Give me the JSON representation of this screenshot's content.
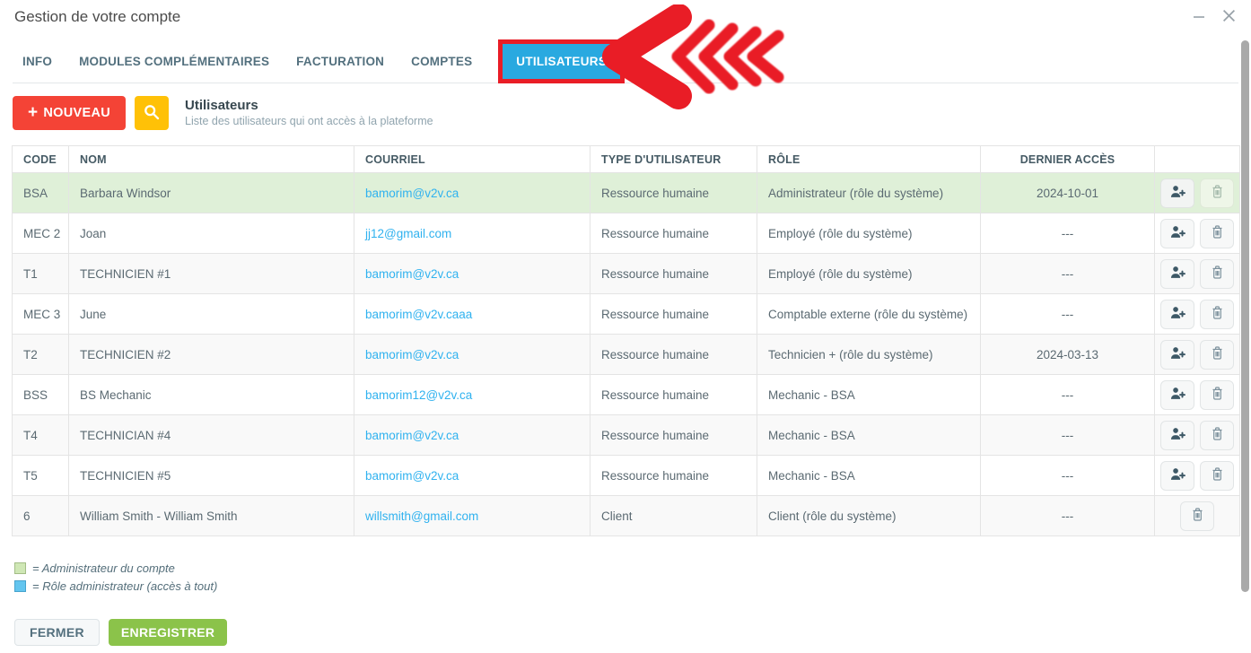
{
  "window": {
    "title": "Gestion de votre compte"
  },
  "tabs": [
    {
      "label": "INFO",
      "active": false
    },
    {
      "label": "MODULES COMPLÉMENTAIRES",
      "active": false
    },
    {
      "label": "FACTURATION",
      "active": false
    },
    {
      "label": "COMPTES",
      "active": false
    },
    {
      "label": "UTILISATEURS",
      "active": true
    }
  ],
  "annotation": {
    "description": "red multi-chevron arrow pointing left at UTILISATEURS tab",
    "color": "#e91d26"
  },
  "toolbar": {
    "new_button_plus": "+",
    "new_button_label": "NOUVEAU",
    "search_icon": "magnifier",
    "heading": "Utilisateurs",
    "subheading": "Liste des utilisateurs qui ont accès à la plateforme"
  },
  "table": {
    "columns": [
      "CODE",
      "NOM",
      "COURRIEL",
      "TYPE D'UTILISATEUR",
      "RÔLE",
      "DERNIER ACCÈS",
      ""
    ],
    "rows": [
      {
        "code": "BSA",
        "name": "Barbara Windsor",
        "email": "bamorim@v2v.ca",
        "type": "Ressource humaine",
        "role": "Administrateur (rôle du système)",
        "last_access": "2024-10-01",
        "highlighted": true,
        "actions": [
          "add-user",
          "delete"
        ]
      },
      {
        "code": "MEC 2",
        "name": "Joan",
        "email": "jj12@gmail.com",
        "type": "Ressource humaine",
        "role": "Employé (rôle du système)",
        "last_access": "---",
        "highlighted": false,
        "actions": [
          "add-user",
          "delete"
        ]
      },
      {
        "code": "T1",
        "name": "TECHNICIEN #1",
        "email": "bamorim@v2v.ca",
        "type": "Ressource humaine",
        "role": "Employé (rôle du système)",
        "last_access": "---",
        "highlighted": false,
        "actions": [
          "add-user",
          "delete"
        ]
      },
      {
        "code": "MEC 3",
        "name": "June",
        "email": "bamorim@v2v.caaa",
        "type": "Ressource humaine",
        "role": "Comptable externe (rôle du système)",
        "last_access": "---",
        "highlighted": false,
        "actions": [
          "add-user",
          "delete"
        ]
      },
      {
        "code": "T2",
        "name": "TECHNICIEN #2",
        "email": "bamorim@v2v.ca",
        "type": "Ressource humaine",
        "role": "Technicien + (rôle du système)",
        "last_access": "2024-03-13",
        "highlighted": false,
        "actions": [
          "add-user",
          "delete"
        ]
      },
      {
        "code": "BSS",
        "name": "BS Mechanic",
        "email": "bamorim12@v2v.ca",
        "type": "Ressource humaine",
        "role": "Mechanic - BSA",
        "last_access": "---",
        "highlighted": false,
        "actions": [
          "add-user",
          "delete"
        ]
      },
      {
        "code": "T4",
        "name": "TECHNICIAN #4",
        "email": "bamorim@v2v.ca",
        "type": "Ressource humaine",
        "role": "Mechanic - BSA",
        "last_access": "---",
        "highlighted": false,
        "actions": [
          "add-user",
          "delete"
        ]
      },
      {
        "code": "T5",
        "name": "TECHNICIEN #5",
        "email": "bamorim@v2v.ca",
        "type": "Ressource humaine",
        "role": "Mechanic - BSA",
        "last_access": "---",
        "highlighted": false,
        "actions": [
          "add-user",
          "delete"
        ]
      },
      {
        "code": "6",
        "name": "William Smith - William Smith",
        "email": "willsmith@gmail.com",
        "type": "Client",
        "role": "Client (rôle du système)",
        "last_access": "---",
        "highlighted": false,
        "actions": [
          "delete"
        ]
      }
    ]
  },
  "legend": [
    {
      "swatch": "green",
      "swatch_color": "#cfe7b5",
      "text": "= Administrateur du compte"
    },
    {
      "swatch": "blue",
      "swatch_color": "#63c5ef",
      "text": "= Rôle administrateur (accès à tout)"
    }
  ],
  "footer": {
    "close_label": "FERMER",
    "save_label": "ENREGISTRER"
  },
  "colors": {
    "active_tab_blue": "#29a9e0",
    "annotation_red": "#e91d26",
    "new_button_red": "#f44336",
    "search_yellow": "#ffc107",
    "highlight_row_green": "#dff0d8",
    "save_green": "#8bc34a",
    "email_link_blue": "#30b2ef"
  }
}
